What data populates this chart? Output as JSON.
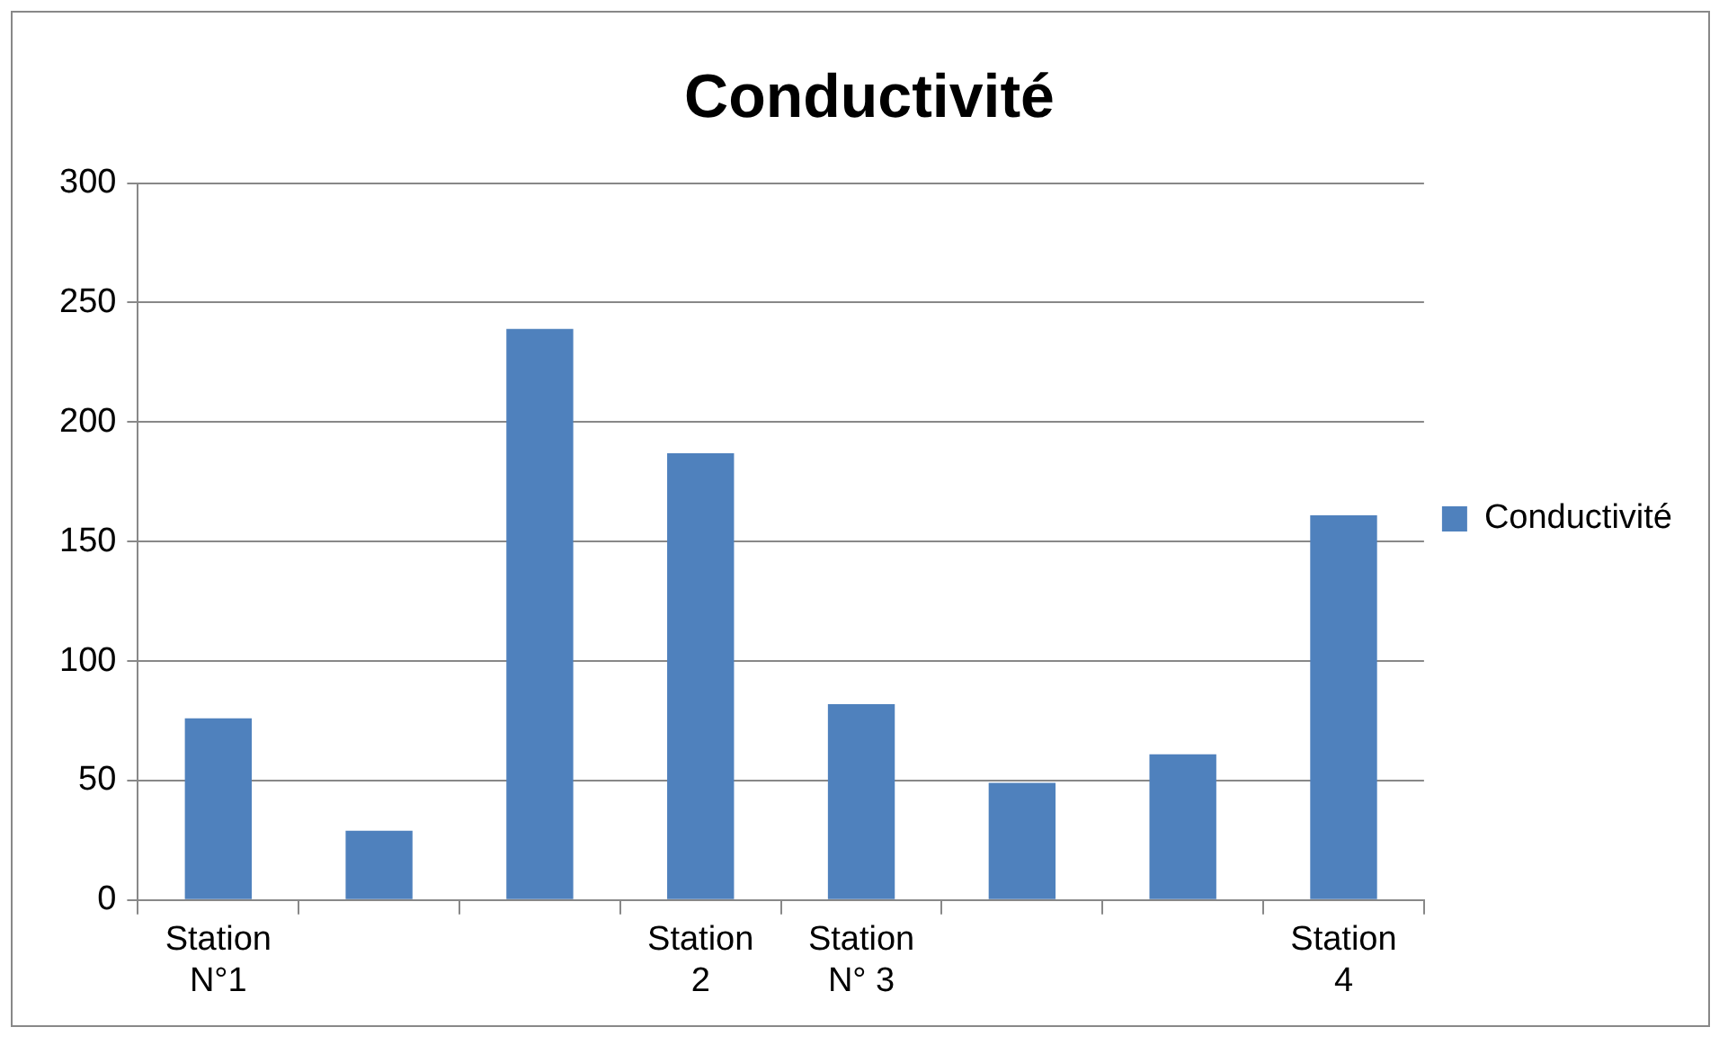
{
  "chart_data": {
    "type": "bar",
    "title": "Conductivité",
    "categories": [
      "Station N°1",
      null,
      null,
      "Station 2",
      "Station N° 3",
      null,
      null,
      "Station 4"
    ],
    "series": [
      {
        "name": "Conductivité",
        "color": "#4f81bd",
        "values": [
          76,
          29,
          239,
          187,
          82,
          49,
          61,
          161
        ]
      }
    ],
    "ylim": [
      0,
      300
    ],
    "yticks": [
      0,
      50,
      100,
      150,
      200,
      250,
      300
    ],
    "grid": "y",
    "legend": "right"
  }
}
